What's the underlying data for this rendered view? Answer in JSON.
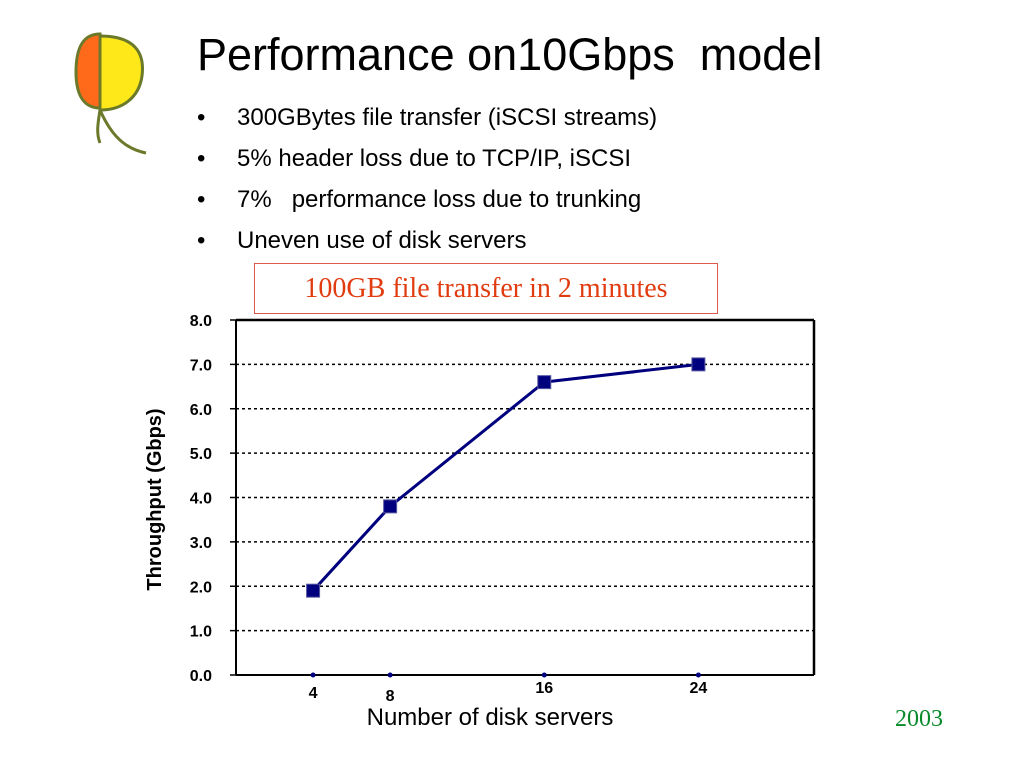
{
  "slide": {
    "title": "Performance on10Gbps  model",
    "bullets": [
      "300GBytes file transfer (iSCSI streams)",
      "5% header loss due to TCP/IP, iSCSI",
      "7%   performance loss due to trunking",
      "Uneven use of disk servers"
    ],
    "callout": "100GB file transfer in 2 minutes",
    "footer_year": "2003",
    "bullet_glyph": "•"
  },
  "logo": {
    "icon": "logo-icon",
    "colors": {
      "orange": "#ff6a1a",
      "yellow": "#ffe81a",
      "stem": "#6b7a2a"
    }
  },
  "chart_data": {
    "type": "line",
    "title": "",
    "xlabel": "Number of disk servers",
    "ylabel": "Throughput (Gbps)",
    "x": [
      4,
      8,
      16,
      24
    ],
    "x_tick_labels": [
      "4",
      "8",
      "16",
      "24"
    ],
    "xlim": [
      0,
      30
    ],
    "ylim": [
      0,
      8
    ],
    "y_ticks": [
      0,
      1,
      2,
      3,
      4,
      5,
      6,
      7,
      8
    ],
    "y_tick_labels": [
      "0.0",
      "1.0",
      "2.0",
      "3.0",
      "4.0",
      "5.0",
      "6.0",
      "7.0",
      "8.0"
    ],
    "series": [
      {
        "values": [
          1.9,
          3.8,
          6.6,
          7.0
        ],
        "color": "#00007f"
      }
    ],
    "grid": "dotted horizontal",
    "legend": "none"
  },
  "colors": {
    "callout_text": "#e03c10",
    "callout_border": "#e05a4a",
    "year_text": "#0a8a2a",
    "series_line": "#00007f"
  }
}
